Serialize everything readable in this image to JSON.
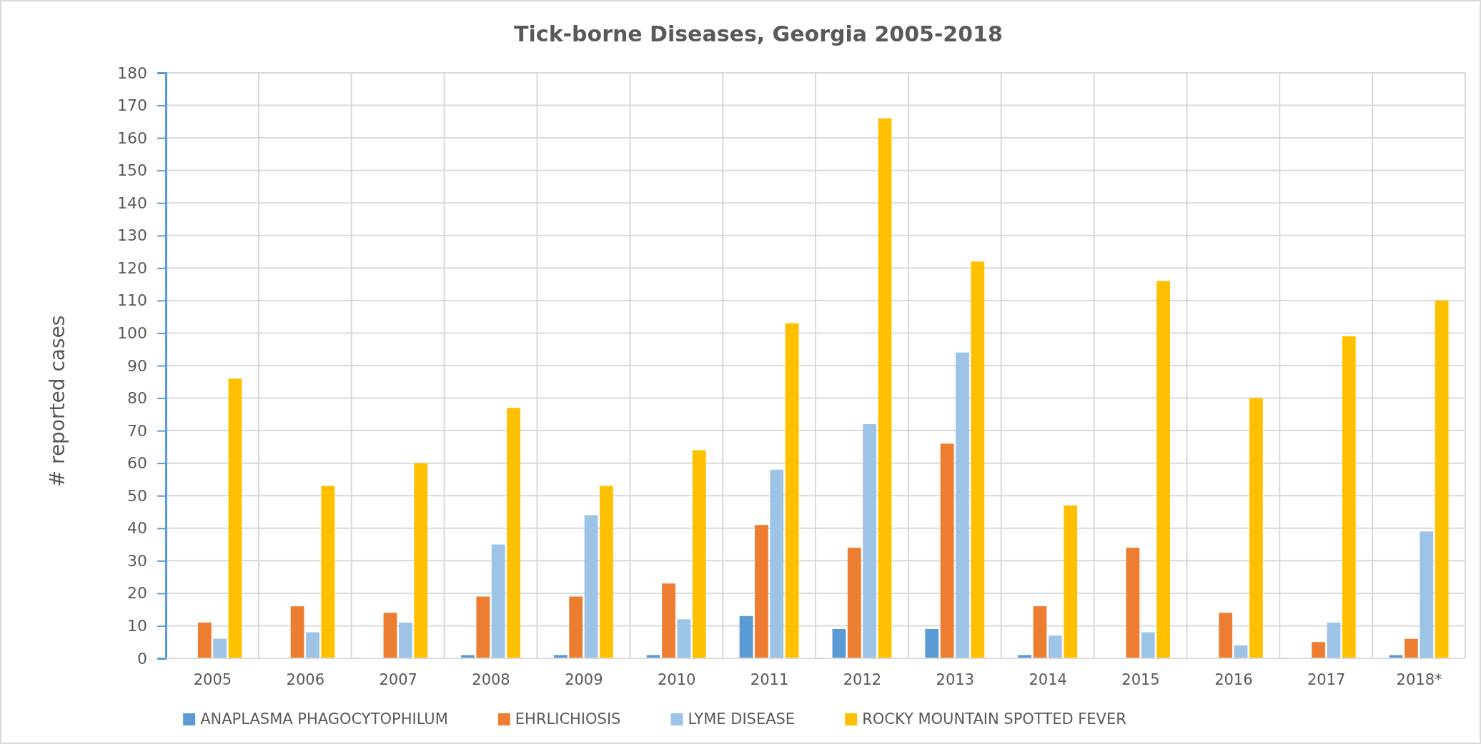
{
  "chart_data": {
    "type": "bar",
    "title": "Tick-borne Diseases, Georgia 2005-2018",
    "ylabel": "# reported cases",
    "categories": [
      "2005",
      "2006",
      "2007",
      "2008",
      "2009",
      "2010",
      "2011",
      "2012",
      "2013",
      "2014",
      "2015",
      "2016",
      "2017",
      "2018*"
    ],
    "series": [
      {
        "name": "ANAPLASMA PHAGOCYTOPHILUM",
        "color": "#5b9bd5",
        "values": [
          0,
          0,
          0,
          1,
          1,
          1,
          13,
          9,
          9,
          1,
          0,
          0,
          0,
          1
        ]
      },
      {
        "name": "EHRLICHIOSIS",
        "color": "#ed7d31",
        "values": [
          11,
          16,
          14,
          19,
          19,
          23,
          41,
          34,
          66,
          16,
          34,
          14,
          5,
          6
        ]
      },
      {
        "name": "LYME DISEASE",
        "color": "#9dc3e6",
        "values": [
          6,
          8,
          11,
          35,
          44,
          12,
          58,
          72,
          94,
          7,
          8,
          4,
          11,
          39
        ]
      },
      {
        "name": "ROCKY MOUNTAIN SPOTTED FEVER",
        "color": "#ffc000",
        "values": [
          86,
          53,
          60,
          77,
          53,
          64,
          103,
          166,
          122,
          47,
          116,
          80,
          99,
          110
        ]
      }
    ],
    "ylim": [
      0,
      180
    ],
    "yticks": [
      0,
      10,
      20,
      30,
      40,
      50,
      60,
      70,
      80,
      90,
      100,
      110,
      120,
      130,
      140,
      150,
      160,
      170,
      180
    ],
    "grid": true,
    "legend": "bottom"
  }
}
